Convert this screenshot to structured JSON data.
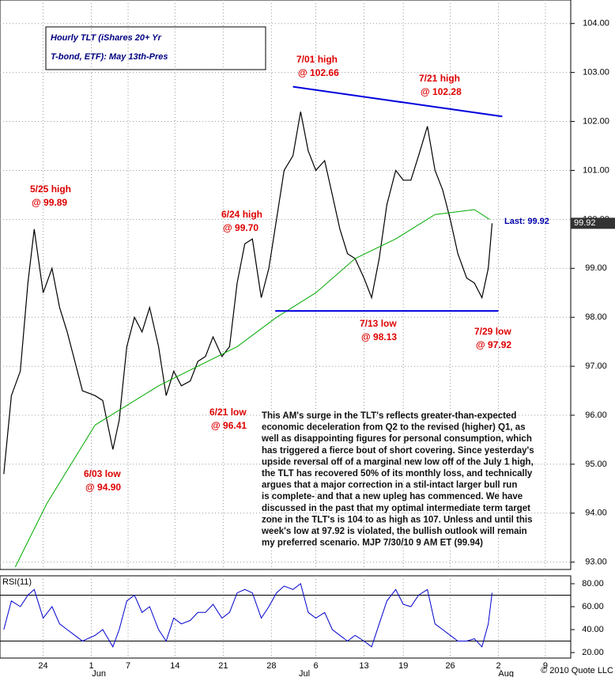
{
  "chart_data": {
    "type": "line",
    "title": [
      "Hourly TLT (iShares 20+ Yr",
      "T-bond, ETF): May 13th-Pres"
    ],
    "x": [
      3,
      9,
      16,
      22,
      27,
      34,
      41,
      47,
      53,
      59,
      65,
      75,
      81,
      89,
      94,
      100,
      106,
      112,
      118,
      125,
      131,
      137,
      143,
      150,
      156,
      162,
      168,
      175,
      181,
      187,
      193,
      199,
      206,
      212,
      218,
      224,
      231,
      237,
      243,
      249,
      256,
      262,
      268,
      274,
      280,
      287,
      293,
      299,
      305,
      312,
      318,
      324,
      330,
      337,
      343,
      349,
      355,
      361,
      368,
      374,
      380,
      385,
      388
    ],
    "series": [
      {
        "color": "#000000",
        "values": [
          94.8,
          96.4,
          96.9,
          98.7,
          99.8,
          98.5,
          99.0,
          98.2,
          97.7,
          97.1,
          96.5,
          96.4,
          96.3,
          95.3,
          95.9,
          97.4,
          98.0,
          97.7,
          98.2,
          97.4,
          96.4,
          96.9,
          96.6,
          96.7,
          97.1,
          97.2,
          97.6,
          97.2,
          97.4,
          98.7,
          99.5,
          99.6,
          98.4,
          99.0,
          100.0,
          101.0,
          101.3,
          102.2,
          101.4,
          101.0,
          101.2,
          100.5,
          99.8,
          99.3,
          99.2,
          98.8,
          98.4,
          99.2,
          100.3,
          101.0,
          100.8,
          100.8,
          101.3,
          101.9,
          101.0,
          100.6,
          100.0,
          99.3,
          98.8,
          98.7,
          98.4,
          99.0,
          99.92
        ]
      },
      {
        "color": "#00aa00",
        "x": [
          12,
          37,
          75,
          125,
          187,
          218,
          249,
          280,
          312,
          343,
          374,
          386
        ],
        "values": [
          92.9,
          94.2,
          95.8,
          96.6,
          97.4,
          98.0,
          98.5,
          99.2,
          99.6,
          100.1,
          100.2,
          100.0
        ]
      }
    ],
    "trendlines": [
      {
        "color": "#0000dd",
        "x": [
          231,
          396
        ],
        "values": [
          102.71,
          102.1
        ]
      },
      {
        "color": "#0000dd",
        "x": [
          217,
          393
        ],
        "values": [
          98.13,
          98.13
        ]
      }
    ],
    "xlim": [
      0,
      450
    ],
    "ylim": [
      92.85,
      104.48
    ],
    "yticks": [
      {
        "value": 93,
        "label": "93.00"
      },
      {
        "value": 94,
        "label": "94.00"
      },
      {
        "value": 95,
        "label": "95.00"
      },
      {
        "value": 96,
        "label": "96.00"
      },
      {
        "value": 97,
        "label": "97.00"
      },
      {
        "value": 98,
        "label": "98.00"
      },
      {
        "value": 99,
        "label": "99.00"
      },
      {
        "value": 100,
        "label": "100.00"
      },
      {
        "value": 101,
        "label": "101.00"
      },
      {
        "value": 102,
        "label": "102.00"
      },
      {
        "value": 103,
        "label": "103.00"
      },
      {
        "value": 104,
        "label": "104.00"
      }
    ],
    "xticks": [
      {
        "value": 34,
        "label": "24"
      },
      {
        "value": 72,
        "label": "1"
      },
      {
        "value": 101,
        "label": "7"
      },
      {
        "value": 138,
        "label": "14"
      },
      {
        "value": 176,
        "label": "21"
      },
      {
        "value": 214,
        "label": "28"
      },
      {
        "value": 249,
        "label": "6"
      },
      {
        "value": 287,
        "label": "13"
      },
      {
        "value": 318,
        "label": "19"
      },
      {
        "value": 355,
        "label": "26"
      },
      {
        "value": 393,
        "label": "2"
      },
      {
        "value": 430,
        "label": "9"
      }
    ],
    "xmonths": [
      {
        "value": 78,
        "label": "Jun"
      },
      {
        "value": 240,
        "label": "Jul"
      },
      {
        "value": 399,
        "label": "Aug"
      }
    ],
    "last": {
      "value": 99.92,
      "label": "99.92",
      "text": "Last: 99.92"
    },
    "annotations": [
      [
        "5/25 high",
        "@ 99.89"
      ],
      [
        "6/03 low",
        "@ 94.90"
      ],
      [
        "6/21 low",
        "@ 96.41"
      ],
      [
        "6/24 high",
        "@ 99.70"
      ],
      [
        "7/01 high",
        "@ 102.66"
      ],
      [
        "7/13 low",
        "@ 98.13"
      ],
      [
        "7/21 high",
        "@ 102.28"
      ],
      [
        "7/29 low",
        "@ 97.92"
      ]
    ],
    "commentary": [
      "This AM's surge in the TLT's reflects greater-than-expected",
      "economic deceleration from Q2 to the revised (higher) Q1, as",
      "well as disappointing figures for personal consumption, which",
      "has triggered a fierce bout of short covering. Since yesterday's",
      "upside reversal off of a marginal new low off of the July 1 high,",
      "the TLT has recovered 50% of its monthly loss, and technically",
      "argues that a major correction in a stil-intact larger bull run",
      "is complete-  and that a new upleg has commenced. We have",
      "discussed in the past that my optimal intermediate term target",
      "zone in the TLT's is 104 to as high as 107. Unless and until this",
      "week's low at 97.92 is violated, the bullish outlook will remain",
      "my preferred scenario. MJP  7/30/10  9 AM ET (99.94)"
    ],
    "rsi": {
      "label": "RSI(11)",
      "color": "#0000cc",
      "values": [
        40,
        65,
        60,
        70,
        75,
        50,
        60,
        45,
        40,
        35,
        30,
        35,
        40,
        25,
        40,
        65,
        70,
        55,
        60,
        40,
        30,
        50,
        45,
        48,
        55,
        55,
        62,
        50,
        55,
        72,
        75,
        72,
        50,
        60,
        72,
        78,
        75,
        80,
        55,
        50,
        55,
        40,
        35,
        30,
        35,
        30,
        25,
        45,
        65,
        75,
        62,
        60,
        70,
        75,
        45,
        40,
        35,
        30,
        30,
        32,
        25,
        45,
        72
      ],
      "ylim": [
        15.2,
        86.9
      ],
      "levels": [
        30,
        70
      ],
      "yticks": [
        {
          "value": 20,
          "label": "20.00"
        },
        {
          "value": 40,
          "label": "40.00"
        },
        {
          "value": 60,
          "label": "60.00"
        },
        {
          "value": 80,
          "label": "80.00"
        }
      ]
    },
    "copyright": "© 2010 Quote LLC"
  }
}
